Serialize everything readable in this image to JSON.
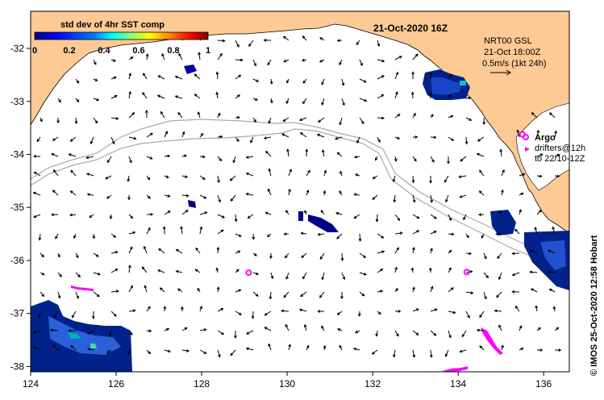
{
  "map": {
    "date_title": "21-Oct-2020 16Z",
    "colorbar": {
      "title": "std dev of 4hr SST comp",
      "labels": [
        "0",
        "0.2",
        "0.4",
        "0.6",
        "0.8",
        "1"
      ],
      "colors": [
        "#00007a",
        "#0000ff",
        "#0080ff",
        "#00ffff",
        "#80ff80",
        "#ffff00",
        "#ff8000",
        "#ff0000",
        "#800000"
      ]
    },
    "annotation": {
      "line1": "NRT00 GSL",
      "line2": "21-Oct 18:00Z",
      "line3": "0.5m/s (1kt 24h)"
    },
    "legend": {
      "argo": "Argo",
      "drifters": "drifters@12h",
      "drifters_range": "to 22/10-12Z"
    },
    "credit": "© IMOS 25-Oct-2020 12:58 Hobart",
    "axes": {
      "longitude_ticks": [
        "124",
        "126",
        "128",
        "130",
        "132",
        "134",
        "136"
      ],
      "latitude_ticks": [
        "-32",
        "-33",
        "-34",
        "-35",
        "-36",
        "-37",
        "-38"
      ],
      "lon_range": [
        124,
        136.6
      ],
      "lat_range": [
        -31.3,
        -38.1
      ]
    },
    "argo_floats": [
      {
        "lon": 129.1,
        "lat": -36.23
      },
      {
        "lon": 134.2,
        "lat": -36.22
      },
      {
        "lon": 135.5,
        "lat": -33.62
      }
    ],
    "colors": {
      "land": "#fdc994",
      "ocean": "#ffffff",
      "argo": "#ff00ff",
      "bathymetry": "#a9a9a9"
    }
  }
}
